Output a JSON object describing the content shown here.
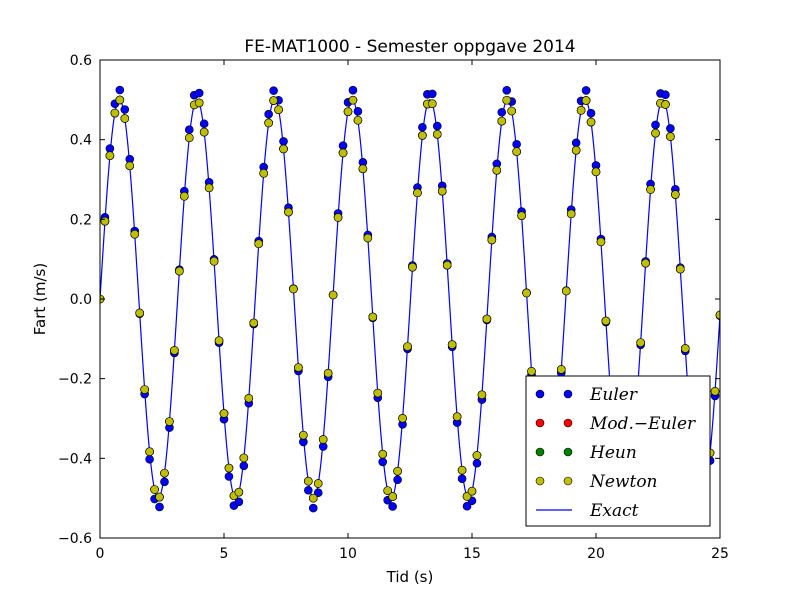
{
  "chart_data": {
    "type": "line",
    "title": "FE-MAT1000 - Semester oppgave 2014",
    "xlabel": "Tid (s)",
    "ylabel": "Fart (m/s)",
    "xlim": [
      0,
      25
    ],
    "ylim": [
      -0.6,
      0.6
    ],
    "xticks": [
      0,
      5,
      10,
      15,
      20,
      25
    ],
    "yticks": [
      -0.6,
      -0.4,
      -0.2,
      0.0,
      0.2,
      0.4,
      0.6
    ],
    "xtick_labels": [
      "0",
      "5",
      "10",
      "15",
      "20",
      "25"
    ],
    "ytick_labels": [
      "−0.6",
      "−0.4",
      "−0.2",
      "0.0",
      "0.2",
      "0.4",
      "0.6"
    ],
    "grid": false,
    "legend_position": "lower-right",
    "model": {
      "form": "A*sin(2*pi*t/T)",
      "amplitude": 0.5,
      "period": 3.13
    },
    "x": [
      0.0,
      0.2,
      0.4,
      0.6,
      0.8,
      1.0,
      1.2,
      1.4,
      1.6,
      1.8,
      2.0,
      2.2,
      2.4,
      2.6,
      2.8,
      3.0,
      3.2,
      3.4,
      3.6,
      3.8,
      4.0,
      4.2,
      4.4,
      4.6,
      4.8,
      5.0,
      5.2,
      5.4,
      5.6,
      5.8,
      6.0,
      6.2,
      6.4,
      6.6,
      6.8,
      7.0,
      7.2,
      7.4,
      7.6,
      7.8,
      8.0,
      8.2,
      8.4,
      8.6,
      8.8,
      9.0,
      9.2,
      9.4,
      9.6,
      9.8,
      10.0,
      10.2,
      10.4,
      10.6,
      10.8,
      11.0,
      11.2,
      11.4,
      11.6,
      11.8,
      12.0,
      12.2,
      12.4,
      12.6,
      12.8,
      13.0,
      13.2,
      13.4,
      13.6,
      13.8,
      14.0,
      14.2,
      14.4,
      14.6,
      14.8,
      15.0,
      15.2,
      15.4,
      15.6,
      15.8,
      16.0,
      16.2,
      16.4,
      16.6,
      16.8,
      17.0,
      17.2,
      17.4,
      17.6,
      17.8,
      18.0,
      18.2,
      18.4,
      18.6,
      18.8,
      19.0,
      19.2,
      19.4,
      19.6,
      19.8,
      20.0,
      20.2,
      20.4,
      20.6,
      20.8,
      21.0,
      21.2,
      21.4,
      21.6,
      21.8,
      22.0,
      22.2,
      22.4,
      22.6,
      22.8,
      23.0,
      23.2,
      23.4,
      23.6,
      23.8,
      24.0,
      24.2,
      24.4,
      24.6,
      24.8,
      25.0
    ],
    "series": [
      {
        "name": "Euler",
        "label": "Euler",
        "marker": "o",
        "color": "#0000ff",
        "amplitude": 0.525,
        "period": 3.13
      },
      {
        "name": "Mod.−Euler",
        "label": "Mod.−Euler",
        "marker": "o",
        "color": "#ff0000",
        "amplitude": 0.5,
        "period": 3.13
      },
      {
        "name": "Heun",
        "label": "Heun",
        "marker": "o",
        "color": "#008000",
        "amplitude": 0.5,
        "period": 3.13
      },
      {
        "name": "Newton",
        "label": "Newton",
        "marker": "o",
        "color": "#bfbf00",
        "amplitude": 0.5,
        "period": 3.13
      },
      {
        "name": "Exact",
        "label": "Exact",
        "marker": "line",
        "color": "#0000ff",
        "amplitude": 0.5,
        "period": 3.13
      }
    ]
  }
}
